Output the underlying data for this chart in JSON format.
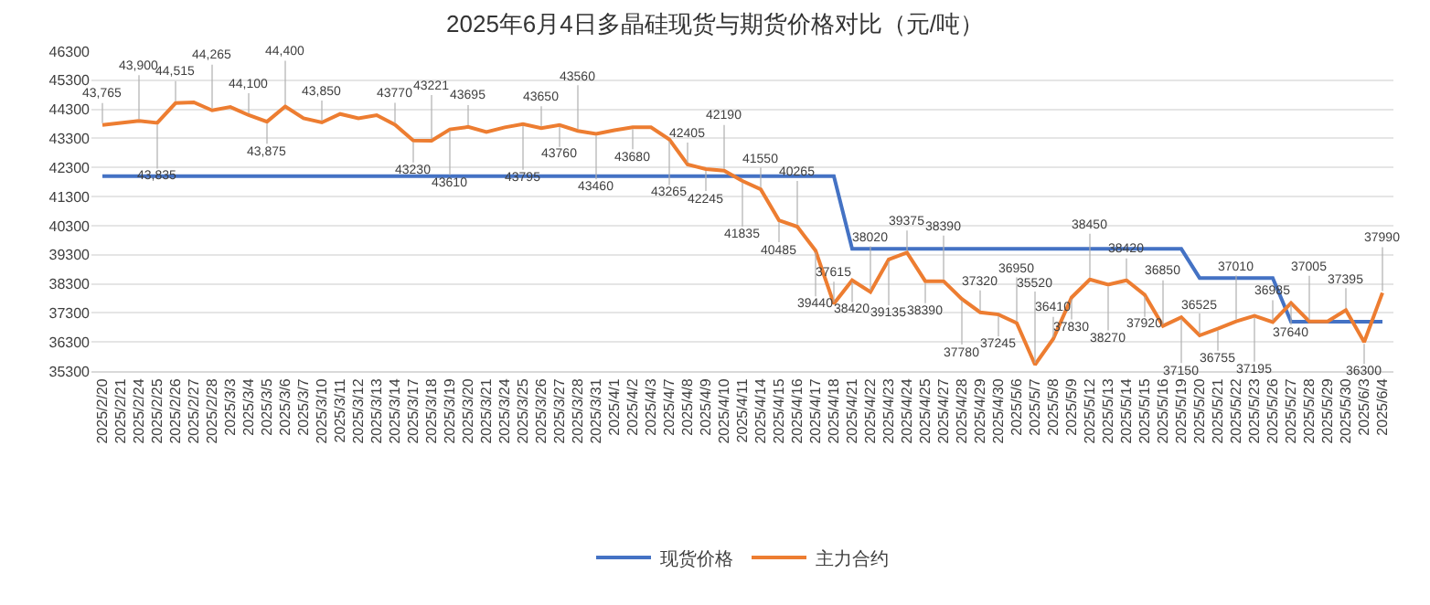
{
  "chart_data": {
    "type": "line",
    "title": "2025年6月4日多晶硅现货与期货价格对比（元/吨）",
    "categories": [
      "2025/2/20",
      "2025/2/21",
      "2025/2/24",
      "2025/2/25",
      "2025/2/26",
      "2025/2/27",
      "2025/2/28",
      "2025/3/3",
      "2025/3/4",
      "2025/3/5",
      "2025/3/6",
      "2025/3/7",
      "2025/3/10",
      "2025/3/11",
      "2025/3/12",
      "2025/3/13",
      "2025/3/14",
      "2025/3/17",
      "2025/3/18",
      "2025/3/19",
      "2025/3/20",
      "2025/3/21",
      "2025/3/24",
      "2025/3/25",
      "2025/3/26",
      "2025/3/27",
      "2025/3/28",
      "2025/3/31",
      "2025/4/1",
      "2025/4/2",
      "2025/4/3",
      "2025/4/7",
      "2025/4/8",
      "2025/4/9",
      "2025/4/10",
      "2025/4/11",
      "2025/4/14",
      "2025/4/15",
      "2025/4/16",
      "2025/4/17",
      "2025/4/18",
      "2025/4/21",
      "2025/4/22",
      "2025/4/23",
      "2025/4/24",
      "2025/4/25",
      "2025/4/27",
      "2025/4/28",
      "2025/4/29",
      "2025/4/30",
      "2025/5/6",
      "2025/5/7",
      "2025/5/8",
      "2025/5/9",
      "2025/5/12",
      "2025/5/13",
      "2025/5/14",
      "2025/5/15",
      "2025/5/16",
      "2025/5/19",
      "2025/5/20",
      "2025/5/21",
      "2025/5/22",
      "2025/5/23",
      "2025/5/26",
      "2025/5/27",
      "2025/5/28",
      "2025/5/29",
      "2025/5/30",
      "2025/6/3",
      "2025/6/4"
    ],
    "series": [
      {
        "name": "现货价格",
        "color": "#4472c4",
        "values": [
          42000,
          42000,
          42000,
          42000,
          42000,
          42000,
          42000,
          42000,
          42000,
          42000,
          42000,
          42000,
          42000,
          42000,
          42000,
          42000,
          42000,
          42000,
          42000,
          42000,
          42000,
          42000,
          42000,
          42000,
          42000,
          42000,
          42000,
          42000,
          42000,
          42000,
          42000,
          42000,
          42000,
          42000,
          42000,
          42000,
          42000,
          42000,
          42000,
          42000,
          42000,
          39500,
          39500,
          39500,
          39500,
          39500,
          39500,
          39500,
          39500,
          39500,
          39500,
          39500,
          39500,
          39500,
          39500,
          39500,
          39500,
          39500,
          39500,
          39500,
          38500,
          38500,
          38500,
          38500,
          38500,
          37000,
          37000,
          37000,
          37000,
          37000,
          37000
        ]
      },
      {
        "name": "主力合约",
        "color": "#ed7d31",
        "values": [
          43765,
          43830,
          43900,
          43835,
          44515,
          44540,
          44265,
          44380,
          44100,
          43875,
          44400,
          43990,
          43850,
          44140,
          43990,
          44100,
          43770,
          43230,
          43221,
          43610,
          43695,
          43520,
          43680,
          43795,
          43650,
          43760,
          43560,
          43460,
          43580,
          43680,
          43680,
          43265,
          42405,
          42245,
          42190,
          41835,
          41550,
          40485,
          40265,
          39440,
          37615,
          38420,
          38020,
          39135,
          39375,
          38390,
          38390,
          37780,
          37320,
          37245,
          36950,
          35520,
          36410,
          37830,
          38450,
          38270,
          38420,
          37920,
          36850,
          37150,
          36525,
          36755,
          37010,
          37195,
          36985,
          37640,
          37005,
          37005,
          37395,
          36300,
          37990
        ],
        "value_labels": [
          "43,765",
          null,
          "43,900",
          "43,835",
          "44,515",
          null,
          "44,265",
          null,
          "44,100",
          "43,875",
          "44,400",
          null,
          "43,850",
          null,
          null,
          null,
          "43770",
          "43230",
          "43221",
          "43610",
          "43695",
          null,
          null,
          "43795",
          "43650",
          "43760",
          "43560",
          "43460",
          null,
          "43680",
          null,
          "43265",
          "42405",
          "42245",
          "42190",
          "41835",
          "41550",
          "40485",
          "40265",
          "39440",
          "37615",
          "38420",
          "38020",
          "39135",
          "39375",
          "38390",
          "38390",
          "37780",
          "37320",
          "37245",
          "36950",
          "35520",
          "36410",
          "37830",
          "38450",
          "38270",
          "38420",
          "37920",
          "36850",
          "37150",
          "36525",
          "36755",
          "37010",
          "37195",
          "36985",
          "37640",
          "37005",
          null,
          "37395",
          "36300",
          "37990"
        ]
      }
    ],
    "ylim": [
      35300,
      46300
    ],
    "yticks": [
      35300,
      36300,
      37300,
      38300,
      39300,
      40300,
      41300,
      42300,
      43300,
      44300,
      45300,
      46300
    ],
    "grid": "y",
    "legend": "bottom",
    "marker": "none",
    "line_style": "solid"
  }
}
